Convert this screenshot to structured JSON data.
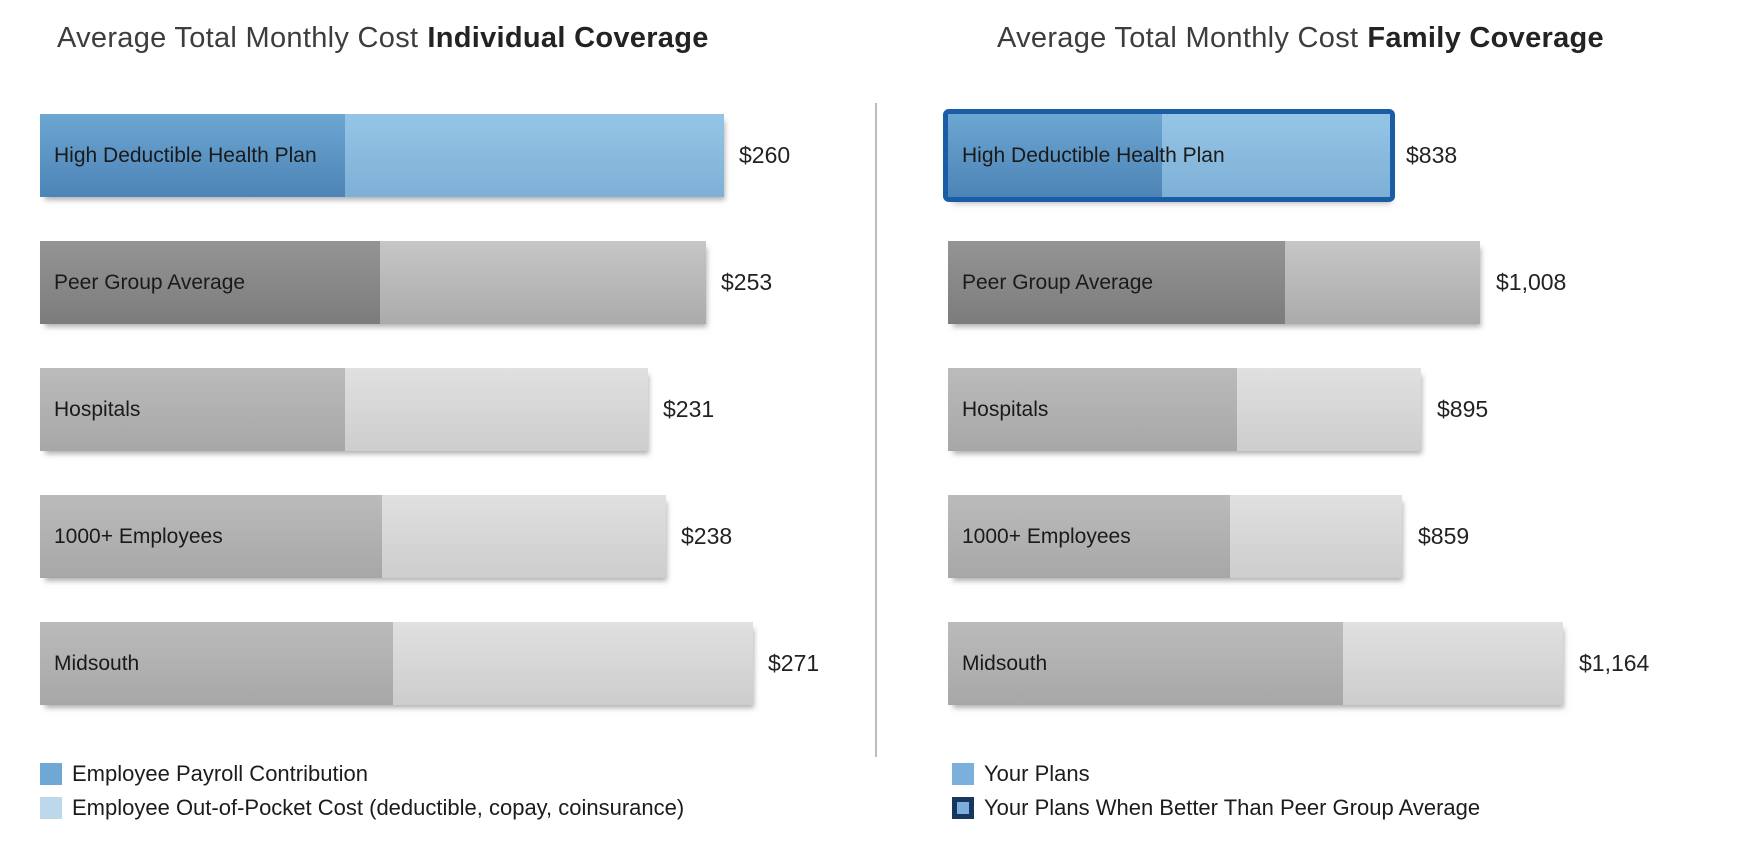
{
  "page": {
    "background": "#FFFFFF"
  },
  "colors": {
    "payroll_blue": "#5693C4",
    "out_of_pocket_blue": "#89BADE",
    "peer_dark_gray": "#888888",
    "peer_light_gray": "#B9B9B9",
    "other_dark_gray": "#B1B1B1",
    "other_light_gray": "#D6D6D6",
    "highlight_border_blue": "#1A5CA6",
    "legend_better_border_navy": "#17375E",
    "divider_gray": "#BDBDBD",
    "text_dark": "#1A1A1A"
  },
  "chart_data": [
    {
      "type": "bar",
      "orientation": "horizontal",
      "title": "Average Total Monthly Cost Individual Coverage",
      "title_regular": "Average Total Monthly Cost",
      "title_bold": "Individual Coverage",
      "categories": [
        "High Deductible Health Plan",
        "Peer Group Average",
        "Hospitals",
        "1000+ Employees",
        "Midsouth"
      ],
      "values": [
        260,
        253,
        231,
        238,
        271
      ],
      "value_labels": [
        "$260",
        "$253",
        "$231",
        "$238",
        "$271"
      ],
      "series": [
        {
          "name": "dark-left-segment-estimated",
          "values": [
            116,
            129,
            116,
            130,
            134
          ]
        },
        {
          "name": "light-right-segment-estimated",
          "values": [
            144,
            124,
            115,
            108,
            137
          ]
        }
      ],
      "bar_styles": [
        "blue",
        "peer",
        "gray",
        "gray",
        "gray"
      ],
      "highlighted": [
        false,
        false,
        false,
        false,
        false
      ],
      "xlim": [
        0,
        280
      ],
      "axes_shown": false,
      "grid": false,
      "legend_position": "bottom-left",
      "legend": [
        {
          "swatch": "payroll-blue-square",
          "label": "Employee Payroll Contribution"
        },
        {
          "swatch": "light-blue-square",
          "label": "Employee Out-of-Pocket Cost (deductible, copay, coinsurance)"
        }
      ]
    },
    {
      "type": "bar",
      "orientation": "horizontal",
      "title": "Average Total Monthly Cost Family Coverage",
      "title_regular": "Average Total Monthly Cost",
      "title_bold": "Family Coverage",
      "categories": [
        "High Deductible Health Plan",
        "Peer Group Average",
        "Hospitals",
        "1000+ Employees",
        "Midsouth"
      ],
      "values": [
        838,
        1008,
        895,
        859,
        1164
      ],
      "value_labels": [
        "$838",
        "$1,008",
        "$895",
        "$859",
        "$1,164"
      ],
      "series": [
        {
          "name": "dark-left-segment-estimated",
          "values": [
            406,
            638,
            548,
            535,
            748
          ]
        },
        {
          "name": "light-right-segment-estimated",
          "values": [
            432,
            370,
            347,
            324,
            416
          ]
        }
      ],
      "bar_styles": [
        "blue",
        "peer",
        "gray",
        "gray",
        "gray"
      ],
      "highlighted": [
        true,
        false,
        false,
        false,
        false
      ],
      "xlim": [
        0,
        1180
      ],
      "axes_shown": false,
      "grid": false,
      "legend_position": "bottom-left",
      "legend": [
        {
          "swatch": "blue-square",
          "label": "Your Plans"
        },
        {
          "swatch": "blue-square-navy-border",
          "label": "Your Plans When Better Than Peer Group Average"
        }
      ]
    }
  ]
}
